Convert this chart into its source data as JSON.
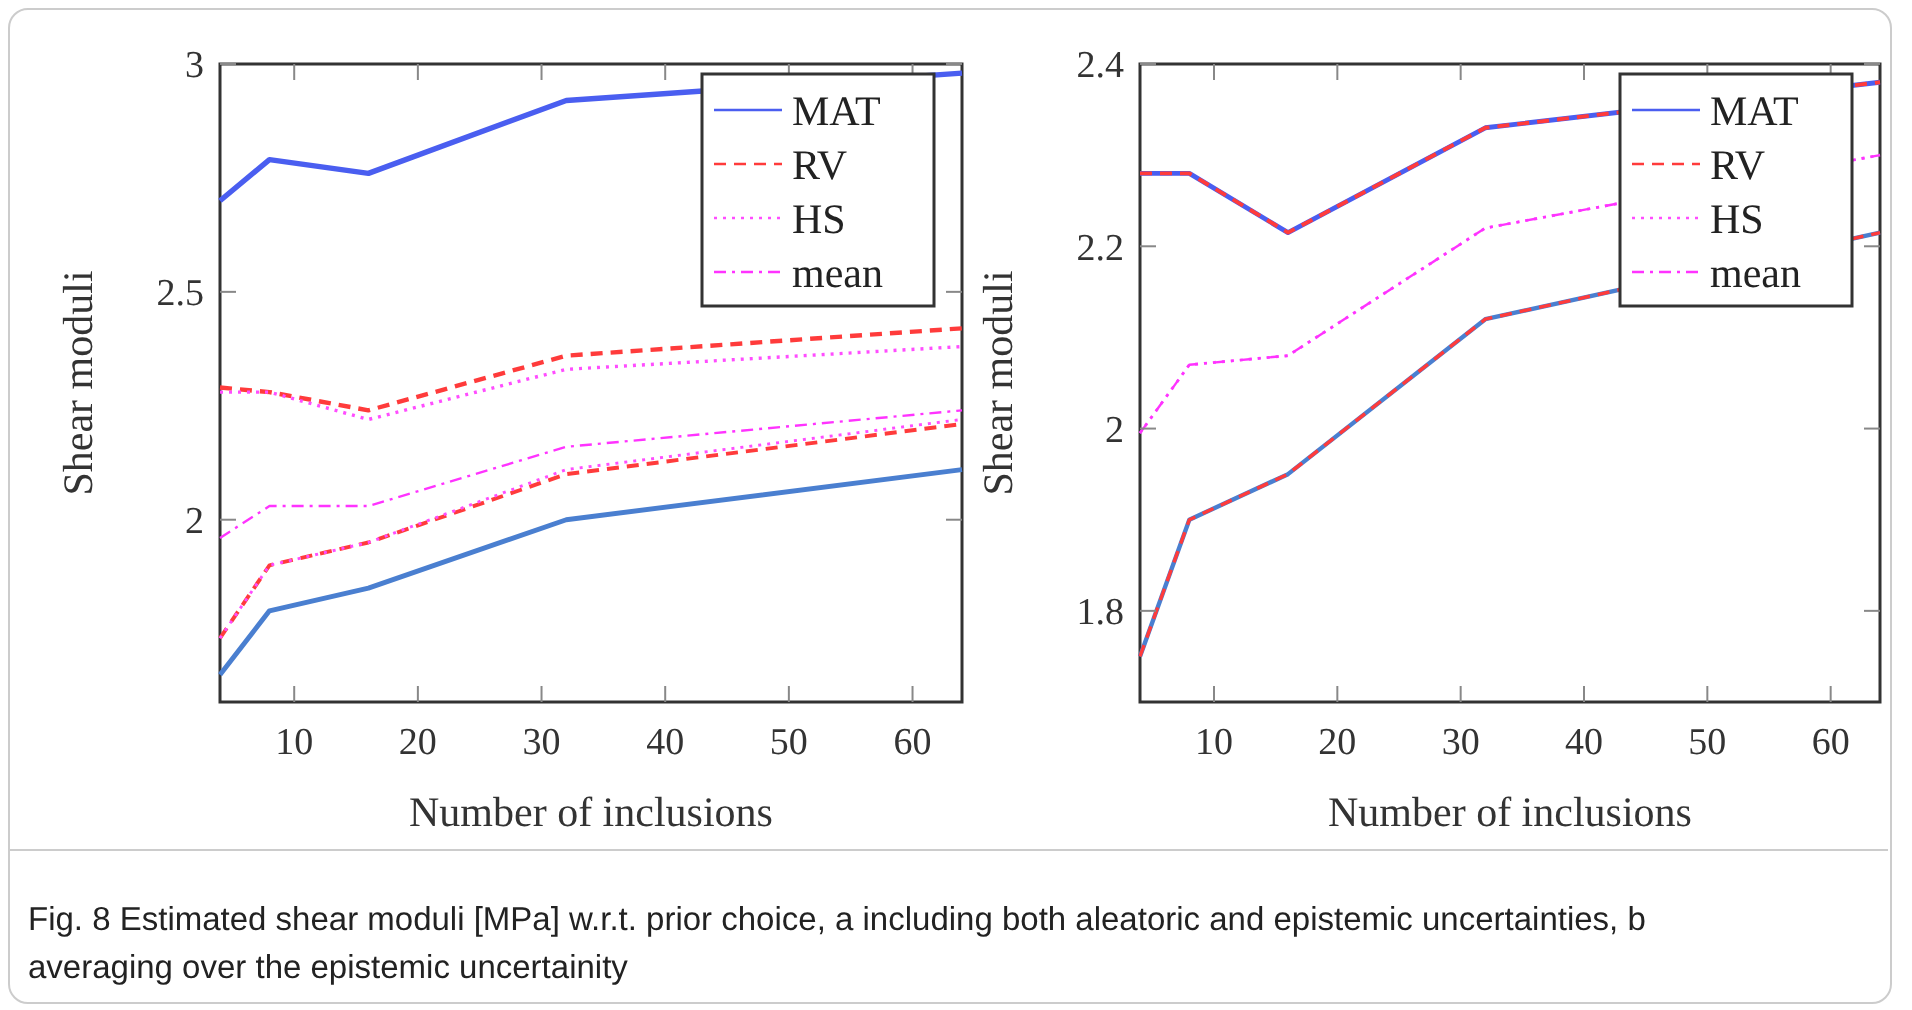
{
  "chart_data": [
    {
      "type": "line",
      "xlabel": "Number of inclusions",
      "ylabel": "Shear moduli",
      "xlim": [
        4,
        64
      ],
      "xticks": [
        10,
        20,
        30,
        40,
        50,
        60
      ],
      "ylim": [
        1.6,
        3
      ],
      "yticks": [
        2,
        2.5,
        3
      ],
      "legend": "top right",
      "grid": false,
      "marker": "none",
      "x": [
        4,
        8,
        16,
        32,
        64
      ],
      "series": [
        {
          "name": "MAT",
          "color": "#4a5ef0",
          "line_style": "solid",
          "values": [
            2.7,
            2.79,
            2.76,
            2.92,
            2.98
          ]
        },
        {
          "color": "#4a7fd0",
          "line_style": "solid",
          "values": [
            1.66,
            1.8,
            1.85,
            2.0,
            2.11
          ]
        },
        {
          "name": "RV",
          "color": "#ff3b3b",
          "line_style": "dashed",
          "values": [
            2.29,
            2.28,
            2.24,
            2.36,
            2.42
          ]
        },
        {
          "color": "#ff3b3b",
          "line_style": "dashed",
          "values": [
            1.74,
            1.9,
            1.95,
            2.1,
            2.21
          ]
        },
        {
          "name": "HS",
          "color": "#ff4dff",
          "line_style": "dotted",
          "values": [
            2.28,
            2.28,
            2.22,
            2.33,
            2.38
          ]
        },
        {
          "color": "#ff4dff",
          "line_style": "dotted",
          "values": [
            1.74,
            1.9,
            1.95,
            2.11,
            2.22
          ]
        },
        {
          "name": "mean",
          "color": "#ff33ff",
          "line_style": "dashdot",
          "values": [
            1.96,
            2.03,
            2.03,
            2.16,
            2.24
          ]
        }
      ],
      "annotations": [
        "Fig. 8 Estimated shear moduli [MPa] w.r.t. prior choice, a including both aleatoric and epistemic uncertainties, b averaging over the epistemic uncertainity"
      ]
    },
    {
      "type": "line",
      "xlabel": "Number of inclusions",
      "ylabel": "Shear moduli",
      "xlim": [
        4,
        64
      ],
      "xticks": [
        10,
        20,
        30,
        40,
        50,
        60
      ],
      "ylim": [
        1.7,
        2.4
      ],
      "yticks": [
        1.8,
        2,
        2.2,
        2.4
      ],
      "legend": "top right",
      "grid": false,
      "marker": "none",
      "x": [
        4,
        8,
        16,
        32,
        64
      ],
      "series": [
        {
          "name": "MAT",
          "color": "#4a5ef0",
          "line_style": "solid",
          "values": [
            2.28,
            2.28,
            2.215,
            2.33,
            2.38
          ]
        },
        {
          "color": "#4a7fd0",
          "line_style": "solid",
          "values": [
            1.75,
            1.9,
            1.95,
            2.12,
            2.215
          ]
        },
        {
          "name": "RV",
          "color": "#ff3b3b",
          "line_style": "dashed",
          "values": [
            2.28,
            2.28,
            2.215,
            2.33,
            2.38
          ]
        },
        {
          "color": "#ff3b3b",
          "line_style": "dashed",
          "values": [
            1.75,
            1.9,
            1.95,
            2.12,
            2.215
          ]
        },
        {
          "name": "HS",
          "color": "#ff4dff",
          "line_style": "dotted",
          "values": [
            1.995,
            2.07,
            2.08,
            2.22,
            2.3
          ]
        },
        {
          "name": "mean",
          "color": "#ff33ff",
          "line_style": "dashdot",
          "values": [
            1.995,
            2.07,
            2.08,
            2.22,
            2.3
          ]
        }
      ]
    }
  ]
}
